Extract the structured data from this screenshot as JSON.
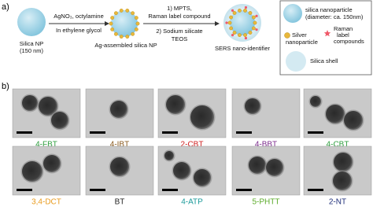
{
  "panel_a": {
    "label": "a)",
    "silica_np": [
      "Silica NP",
      "(150 nm)"
    ],
    "step1": {
      "above": "AgNO₃, octylamine",
      "below": "In ethylene glycol"
    },
    "ag_np": "Ag-assembled silica NP",
    "step2": {
      "above": [
        "1) MPTS,",
        "Raman label compound"
      ],
      "below": [
        "2) Sodium silicate",
        "TEOS"
      ]
    },
    "product": "SERS nano-identifier",
    "legend": {
      "silica": [
        "silica nanoparticle",
        "(diameter: ca. 150nm)"
      ],
      "silver": [
        "Silver",
        "nanoparticle"
      ],
      "raman": [
        "Raman",
        "label",
        "compounds"
      ],
      "shell": "Silica shell"
    }
  },
  "panel_b": {
    "label": "b)",
    "images": [
      {
        "label": "4-FBT",
        "color": "#2e9e3e"
      },
      {
        "label": "4-IBT",
        "color": "#8a5a1e"
      },
      {
        "label": "2-CBT",
        "color": "#d02020"
      },
      {
        "label": "4-BBT",
        "color": "#7b2a8c"
      },
      {
        "label": "4-CBT",
        "color": "#2e9e3e"
      },
      {
        "label": "3,4-DCT",
        "color": "#e89a1c"
      },
      {
        "label": "BT",
        "color": "#222222"
      },
      {
        "label": "4-ATP",
        "color": "#1a9a9a"
      },
      {
        "label": "5-PHTT",
        "color": "#5aaa28"
      },
      {
        "label": "2-NT",
        "color": "#1f2f7a"
      }
    ]
  }
}
